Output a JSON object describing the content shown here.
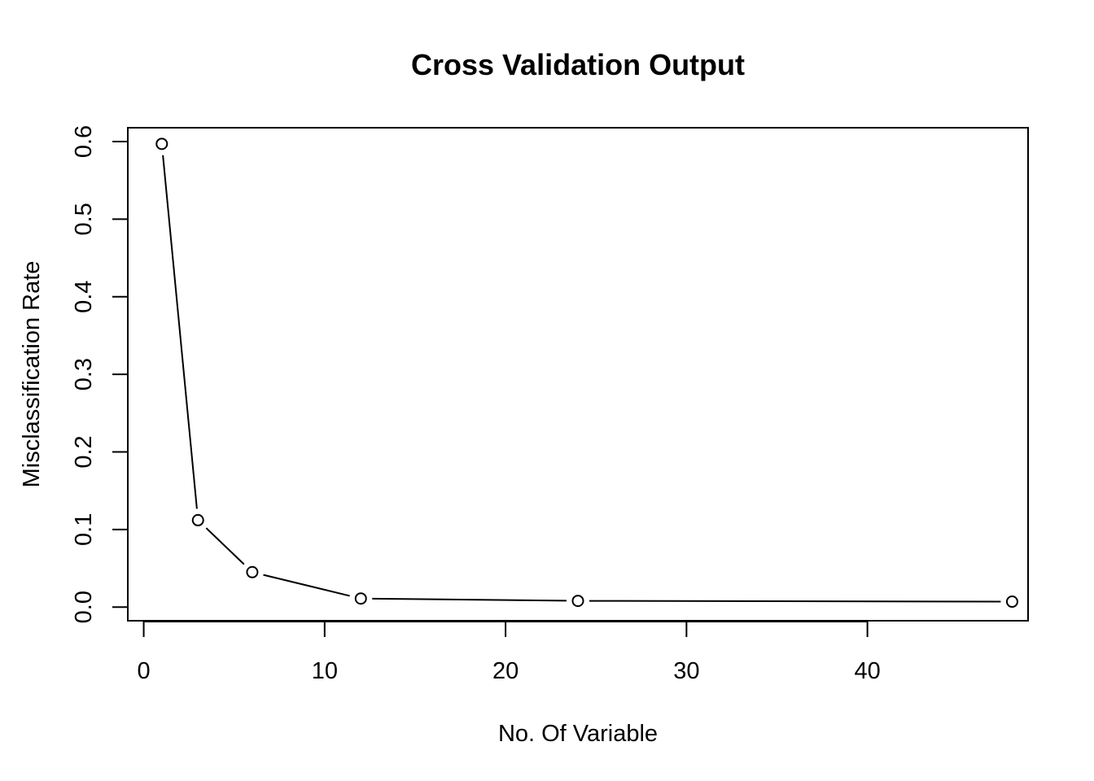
{
  "chart_data": {
    "type": "line",
    "title": "Cross Validation Output",
    "xlabel": "No. Of Variable",
    "ylabel": "Misclassification Rate",
    "xlim": [
      -0.88,
      48.88
    ],
    "ylim": [
      -0.0176,
      0.6178
    ],
    "x_ticks": [
      0,
      10,
      20,
      30,
      40
    ],
    "y_ticks": [
      0.0,
      0.1,
      0.2,
      0.3,
      0.4,
      0.5,
      0.6
    ],
    "x_tick_labels": [
      "0",
      "10",
      "20",
      "30",
      "40"
    ],
    "y_tick_labels": [
      "0.0",
      "0.1",
      "0.2",
      "0.3",
      "0.4",
      "0.5",
      "0.6"
    ],
    "marker": "open-circle",
    "line_style": "solid",
    "grid": false,
    "legend": false,
    "series": [
      {
        "x": [
          1,
          3,
          6,
          12,
          24,
          48
        ],
        "values": [
          0.597,
          0.112,
          0.045,
          0.011,
          0.008,
          0.007
        ]
      }
    ]
  }
}
